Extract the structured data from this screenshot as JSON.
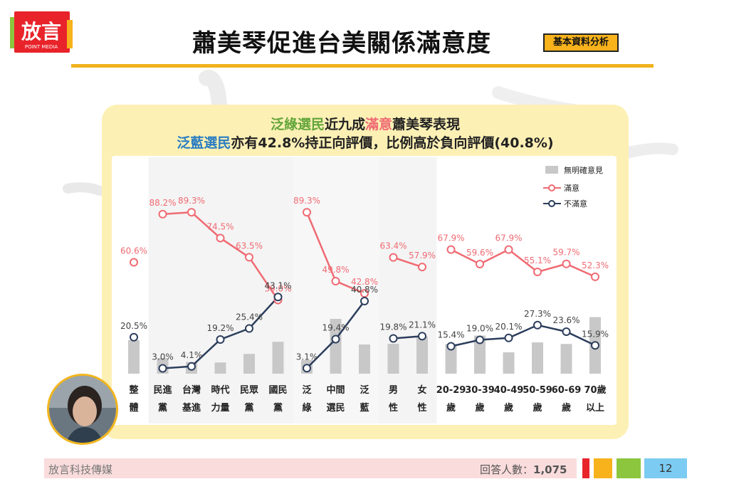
{
  "logo": {
    "text": "放言",
    "sub": "POINT MEDIA"
  },
  "title": "蕭美琴促進台美關係滿意度",
  "badge": "基本資料分析",
  "headline": {
    "line1": [
      "泛綠選民",
      "近九成",
      "滿意",
      "蕭美琴表現"
    ],
    "line2": [
      "泛藍選民",
      "亦有42.8%持正向評價，比例高於負向評價(40.8%)"
    ]
  },
  "legend": [
    "無明確意見",
    "滿意",
    "不滿意"
  ],
  "colors": {
    "satisfied": "#ef6b73",
    "dissatisfied": "#2c3e5c",
    "noopinion": "#c8c8c8",
    "accent": "#f0b31e"
  },
  "chart_data": {
    "type": "line",
    "categories": [
      [
        "整",
        "體"
      ],
      [
        "民進",
        "黨"
      ],
      [
        "台灣",
        "基進"
      ],
      [
        "時代",
        "力量"
      ],
      [
        "民眾",
        "黨"
      ],
      [
        "國民",
        "黨"
      ],
      [
        "泛",
        "綠"
      ],
      [
        "中間",
        "選民"
      ],
      [
        "泛",
        "藍"
      ],
      [
        "男",
        "性"
      ],
      [
        "女",
        "性"
      ],
      [
        "20-29",
        "歲"
      ],
      [
        "30-39",
        "歲"
      ],
      [
        "40-49",
        "歲"
      ],
      [
        "50-59",
        "歲"
      ],
      [
        "60-69",
        "歲"
      ],
      [
        "70歲",
        "以上"
      ]
    ],
    "segments": [
      [
        0,
        0
      ],
      [
        1,
        5
      ],
      [
        6,
        8
      ],
      [
        9,
        10
      ],
      [
        11,
        16
      ]
    ],
    "series": [
      {
        "name": "滿意",
        "values": [
          60.6,
          88.2,
          89.3,
          74.5,
          63.5,
          39.0,
          89.3,
          49.8,
          42.8,
          63.4,
          57.9,
          67.9,
          59.6,
          67.9,
          55.1,
          59.7,
          52.3
        ],
        "labels": [
          "60.6%",
          "88.2%",
          "89.3%",
          "74.5%",
          "63.5%",
          "39.0%",
          "89.3%",
          "49.8%",
          "42.8%",
          "63.4%",
          "57.9%",
          "67.9%",
          "59.6%",
          "67.9%",
          "55.1%",
          "59.7%",
          "52.3%"
        ]
      },
      {
        "name": "不滿意",
        "values": [
          20.5,
          3.0,
          4.1,
          19.2,
          25.4,
          43.1,
          3.1,
          19.4,
          40.8,
          19.8,
          21.1,
          15.4,
          19.0,
          20.1,
          27.3,
          23.6,
          15.9
        ],
        "labels": [
          "20.5%",
          "3.0%",
          "4.1%",
          "19.2%",
          "25.4%",
          "43.1%",
          "3.1%",
          "19.4%",
          "40.8%",
          "19.8%",
          "21.1%",
          "15.4%",
          "19.0%",
          "20.1%",
          "27.3%",
          "23.6%",
          "15.9%"
        ]
      },
      {
        "name": "無明確意見",
        "values": [
          18.9,
          8.8,
          6.6,
          6.3,
          11.1,
          17.9,
          7.6,
          30.8,
          16.4,
          16.8,
          21.0,
          16.7,
          21.4,
          12.0,
          17.6,
          16.7,
          31.8
        ]
      }
    ],
    "ylim": [
      0,
      100
    ]
  },
  "footer": {
    "source": "放言科技傳媒",
    "n_label": "回答人數：",
    "n_value": "1,075",
    "page": "12"
  }
}
